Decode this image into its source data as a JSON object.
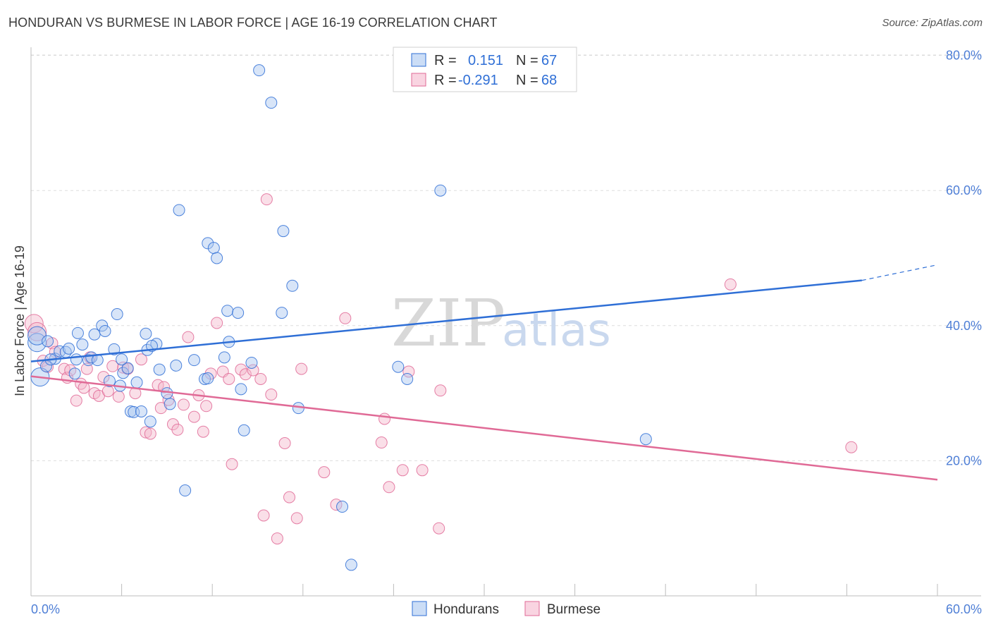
{
  "header": {
    "title": "HONDURAN VS BURMESE IN LABOR FORCE | AGE 16-19 CORRELATION CHART",
    "source": "Source: ZipAtlas.com"
  },
  "watermark": {
    "part1": "ZIP",
    "part2": "atlas"
  },
  "legend": {
    "rows": [
      {
        "r_label": "R =",
        "r_value": "0.151",
        "n_label": "N =",
        "n_value": "67"
      },
      {
        "r_label": "R =",
        "r_value": "-0.291",
        "n_label": "N =",
        "n_value": "68"
      }
    ]
  },
  "colors": {
    "blue": "#2f6fd6",
    "blue_fill": "#a9c6f0",
    "pink": "#e06a96",
    "pink_fill": "#f5b8cd",
    "grid": "#dddddd",
    "axis_text": "#4f7fd6"
  },
  "chart_data": {
    "type": "scatter",
    "title": "HONDURAN VS BURMESE IN LABOR FORCE | AGE 16-19 CORRELATION CHART",
    "xlabel": "",
    "ylabel": "In Labor Force | Age 16-19",
    "xlim": [
      0,
      60
    ],
    "ylim": [
      0,
      82
    ],
    "x_tick_labels": [
      "0.0%",
      "60.0%"
    ],
    "y_ticks": [
      20,
      40,
      60,
      80
    ],
    "y_tick_labels": [
      "20.0%",
      "40.0%",
      "60.0%",
      "80.0%"
    ],
    "grid": true,
    "legend_position": "top-center",
    "series": [
      {
        "name": "Hondurans",
        "color": "#2f6fd6",
        "r": 0.151,
        "n": 67,
        "trend": {
          "x0": 0,
          "y0": 34.7,
          "x1": 55,
          "y1": 46.7,
          "dashed_to_x": 60,
          "dashed_to_y": 49.0
        },
        "points": [
          [
            0.4,
            37.5
          ],
          [
            0.4,
            38.5
          ],
          [
            0.6,
            32.4
          ],
          [
            1.0,
            34.0
          ],
          [
            1.1,
            37.7
          ],
          [
            1.6,
            35.1
          ],
          [
            1.9,
            36.2
          ],
          [
            2.3,
            36.1
          ],
          [
            2.5,
            36.6
          ],
          [
            2.9,
            32.9
          ],
          [
            3.1,
            38.9
          ],
          [
            3.4,
            37.2
          ],
          [
            3.8,
            34.9
          ],
          [
            4.0,
            35.3
          ],
          [
            4.2,
            38.7
          ],
          [
            4.4,
            34.9
          ],
          [
            4.7,
            40.0
          ],
          [
            4.9,
            39.2
          ],
          [
            5.2,
            31.8
          ],
          [
            5.5,
            36.5
          ],
          [
            5.7,
            41.7
          ],
          [
            5.9,
            31.1
          ],
          [
            6.1,
            33.0
          ],
          [
            6.4,
            33.7
          ],
          [
            6.6,
            27.3
          ],
          [
            6.8,
            27.2
          ],
          [
            7.0,
            31.6
          ],
          [
            7.3,
            27.3
          ],
          [
            7.6,
            38.8
          ],
          [
            7.7,
            36.4
          ],
          [
            7.9,
            25.8
          ],
          [
            8.3,
            37.3
          ],
          [
            8.5,
            33.5
          ],
          [
            9.0,
            30.0
          ],
          [
            9.2,
            28.4
          ],
          [
            9.6,
            34.1
          ],
          [
            9.8,
            57.1
          ],
          [
            10.2,
            15.6
          ],
          [
            10.8,
            34.9
          ],
          [
            11.5,
            32.1
          ],
          [
            11.7,
            32.2
          ],
          [
            11.7,
            52.2
          ],
          [
            12.1,
            51.5
          ],
          [
            12.3,
            50.0
          ],
          [
            12.8,
            35.3
          ],
          [
            13.0,
            42.2
          ],
          [
            13.1,
            37.6
          ],
          [
            13.7,
            41.9
          ],
          [
            13.9,
            30.6
          ],
          [
            14.1,
            24.5
          ],
          [
            14.6,
            34.5
          ],
          [
            15.1,
            77.8
          ],
          [
            15.9,
            73.0
          ],
          [
            16.6,
            41.9
          ],
          [
            16.7,
            54.0
          ],
          [
            17.3,
            45.9
          ],
          [
            17.7,
            27.8
          ],
          [
            20.6,
            13.2
          ],
          [
            21.2,
            4.6
          ],
          [
            24.3,
            33.9
          ],
          [
            24.9,
            32.1
          ],
          [
            27.1,
            60.0
          ],
          [
            40.7,
            23.2
          ],
          [
            1.3,
            35.0
          ],
          [
            3.0,
            35.0
          ],
          [
            6.0,
            35.0
          ],
          [
            8.0,
            37.0
          ]
        ]
      },
      {
        "name": "Burmese",
        "color": "#e06a96",
        "r": -0.291,
        "n": 68,
        "trend": {
          "x0": 0,
          "y0": 32.5,
          "x1": 60,
          "y1": 17.2
        },
        "points": [
          [
            0.2,
            40.3
          ],
          [
            0.4,
            39.1
          ],
          [
            0.8,
            34.8
          ],
          [
            1.1,
            33.9
          ],
          [
            1.4,
            37.4
          ],
          [
            1.6,
            36.1
          ],
          [
            2.2,
            33.6
          ],
          [
            2.4,
            32.3
          ],
          [
            2.6,
            33.4
          ],
          [
            3.0,
            28.9
          ],
          [
            3.3,
            31.4
          ],
          [
            3.5,
            30.8
          ],
          [
            3.7,
            33.6
          ],
          [
            4.2,
            30.0
          ],
          [
            4.5,
            29.6
          ],
          [
            4.8,
            32.4
          ],
          [
            5.1,
            30.3
          ],
          [
            5.4,
            34.0
          ],
          [
            5.8,
            29.5
          ],
          [
            6.1,
            33.8
          ],
          [
            6.4,
            33.6
          ],
          [
            6.9,
            30.0
          ],
          [
            7.3,
            35.0
          ],
          [
            7.6,
            24.2
          ],
          [
            7.9,
            24.0
          ],
          [
            8.4,
            31.2
          ],
          [
            8.6,
            27.8
          ],
          [
            8.8,
            30.9
          ],
          [
            9.1,
            29.0
          ],
          [
            9.4,
            25.4
          ],
          [
            9.7,
            24.6
          ],
          [
            10.1,
            28.3
          ],
          [
            10.4,
            38.3
          ],
          [
            10.8,
            26.5
          ],
          [
            11.1,
            29.7
          ],
          [
            11.4,
            24.3
          ],
          [
            11.6,
            28.1
          ],
          [
            11.9,
            32.9
          ],
          [
            12.3,
            40.4
          ],
          [
            12.7,
            33.2
          ],
          [
            13.1,
            32.1
          ],
          [
            13.3,
            19.5
          ],
          [
            13.9,
            33.5
          ],
          [
            14.2,
            32.8
          ],
          [
            14.7,
            33.4
          ],
          [
            15.2,
            32.1
          ],
          [
            15.4,
            11.9
          ],
          [
            15.6,
            58.7
          ],
          [
            15.9,
            29.8
          ],
          [
            16.3,
            8.5
          ],
          [
            16.8,
            22.6
          ],
          [
            17.1,
            14.6
          ],
          [
            17.6,
            11.5
          ],
          [
            17.9,
            33.6
          ],
          [
            19.4,
            18.3
          ],
          [
            20.2,
            13.5
          ],
          [
            20.8,
            41.1
          ],
          [
            23.2,
            22.7
          ],
          [
            23.4,
            26.2
          ],
          [
            23.7,
            16.1
          ],
          [
            24.6,
            18.6
          ],
          [
            25.0,
            33.2
          ],
          [
            25.9,
            18.6
          ],
          [
            27.0,
            10.0
          ],
          [
            27.1,
            30.4
          ],
          [
            46.3,
            46.1
          ],
          [
            54.3,
            22.0
          ],
          [
            3.9,
            35.3
          ]
        ]
      }
    ]
  },
  "bottom_legend": {
    "items": [
      "Hondurans",
      "Burmese"
    ]
  }
}
